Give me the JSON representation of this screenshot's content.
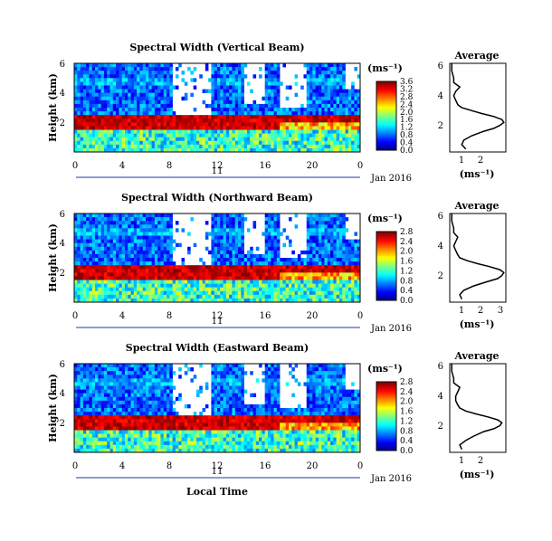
{
  "chart_data": [
    {
      "type": "heatmap",
      "title": "Spectral Width (Vertical Beam)",
      "ylabel": "Height (km)",
      "unit": "(ms⁻¹)",
      "x_ticks": [
        "0",
        "4",
        "8",
        "12",
        "16",
        "20",
        "0"
      ],
      "xlim": [
        0,
        24
      ],
      "y_ticks": [
        "2",
        "4",
        "6"
      ],
      "ylim": [
        0,
        6
      ],
      "day_label": "11",
      "date_label": "Jan 2016",
      "colorbar_ticks": [
        "0.0",
        "0.4",
        "0.8",
        "1.2",
        "1.6",
        "2.0",
        "2.4",
        "2.8",
        "3.2",
        "3.6"
      ],
      "colorbar_range": [
        0,
        3.6
      ],
      "average_profile": {
        "title": "Average",
        "xlabel": "(ms⁻¹)",
        "x_ticks": [
          "1",
          "2"
        ],
        "xlim": [
          0.4,
          3.2
        ],
        "y_ticks": [
          "2",
          "4",
          "6"
        ],
        "ylim": [
          0,
          6
        ],
        "heights": [
          0.2,
          0.5,
          0.8,
          1.1,
          1.4,
          1.6,
          1.8,
          2.0,
          2.2,
          2.4,
          2.6,
          2.8,
          3.0,
          3.2,
          3.5,
          3.8,
          4.1,
          4.4,
          4.7,
          5.0,
          5.5,
          6.0
        ],
        "values": [
          1.2,
          1.0,
          1.1,
          1.5,
          2.1,
          2.6,
          2.9,
          3.1,
          3.0,
          2.6,
          2.0,
          1.5,
          1.0,
          0.8,
          0.7,
          0.6,
          0.7,
          0.9,
          0.6,
          0.6,
          0.5,
          0.5
        ]
      }
    },
    {
      "type": "heatmap",
      "title": "Spectral Width (Northward Beam)",
      "ylabel": "Height (km)",
      "unit": "(ms⁻¹)",
      "x_ticks": [
        "0",
        "4",
        "8",
        "12",
        "16",
        "20",
        "0"
      ],
      "xlim": [
        0,
        24
      ],
      "y_ticks": [
        "2",
        "4",
        "6"
      ],
      "ylim": [
        0,
        6
      ],
      "day_label": "11",
      "date_label": "Jan 2016",
      "colorbar_ticks": [
        "0.0",
        "0.4",
        "0.8",
        "1.2",
        "1.6",
        "2.0",
        "2.4",
        "2.8"
      ],
      "colorbar_range": [
        0,
        2.8
      ],
      "average_profile": {
        "title": "Average",
        "xlabel": "(ms⁻¹)",
        "x_ticks": [
          "1",
          "2",
          "3"
        ],
        "xlim": [
          0.4,
          3.2
        ],
        "y_ticks": [
          "2",
          "4",
          "6"
        ],
        "ylim": [
          0,
          6
        ],
        "heights": [
          0.2,
          0.5,
          0.8,
          1.1,
          1.4,
          1.6,
          1.8,
          2.0,
          2.2,
          2.4,
          2.6,
          2.8,
          3.0,
          3.2,
          3.5,
          3.8,
          4.1,
          4.4,
          4.7,
          5.0,
          5.5,
          6.0
        ],
        "values": [
          1.0,
          0.9,
          1.1,
          1.6,
          2.3,
          2.8,
          3.0,
          3.1,
          2.9,
          2.4,
          1.8,
          1.3,
          0.9,
          0.8,
          0.7,
          0.6,
          0.7,
          0.8,
          0.6,
          0.6,
          0.5,
          0.5
        ]
      }
    },
    {
      "type": "heatmap",
      "title": "Spectral Width (Eastward Beam)",
      "ylabel": "Height (km)",
      "unit": "(ms⁻¹)",
      "x_ticks": [
        "0",
        "4",
        "8",
        "12",
        "16",
        "20",
        "0"
      ],
      "xlim": [
        0,
        24
      ],
      "y_ticks": [
        "2",
        "4",
        "6"
      ],
      "ylim": [
        0,
        6
      ],
      "day_label": "11",
      "date_label": "Jan 2016",
      "xlabel": "Local Time",
      "colorbar_ticks": [
        "0.0",
        "0.4",
        "0.8",
        "1.2",
        "1.6",
        "2.0",
        "2.4",
        "2.8"
      ],
      "colorbar_range": [
        0,
        2.8
      ],
      "average_profile": {
        "title": "Average",
        "xlabel": "(ms⁻¹)",
        "x_ticks": [
          "1",
          "2"
        ],
        "xlim": [
          0.4,
          3.2
        ],
        "y_ticks": [
          "2",
          "4",
          "6"
        ],
        "ylim": [
          0,
          6
        ],
        "heights": [
          0.2,
          0.5,
          0.8,
          1.1,
          1.4,
          1.6,
          1.8,
          2.0,
          2.2,
          2.4,
          2.6,
          2.8,
          3.0,
          3.2,
          3.5,
          3.8,
          4.1,
          4.4,
          4.7,
          5.0,
          5.5,
          6.0
        ],
        "values": [
          1.0,
          0.9,
          1.2,
          1.6,
          2.1,
          2.6,
          2.9,
          3.0,
          2.8,
          2.3,
          1.7,
          1.2,
          0.9,
          0.8,
          0.7,
          0.7,
          0.8,
          0.9,
          0.6,
          0.6,
          0.5,
          0.5
        ]
      }
    }
  ]
}
